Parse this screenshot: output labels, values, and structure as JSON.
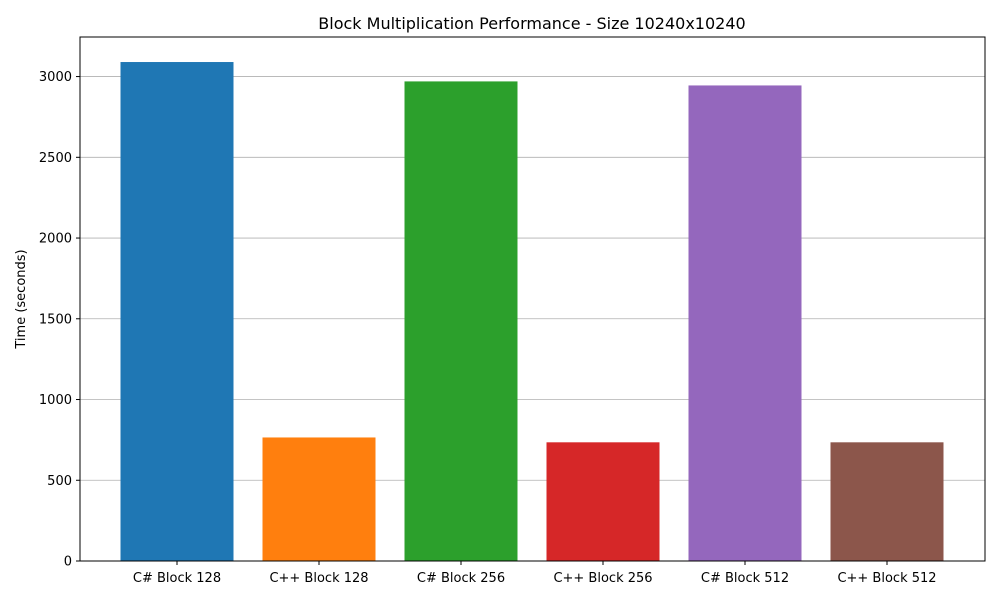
{
  "chart_data": {
    "type": "bar",
    "title": "Block Multiplication Performance - Size 10240x10240",
    "xlabel": "",
    "ylabel": "Time (seconds)",
    "categories": [
      "C# Block 128",
      "C++ Block 128",
      "C# Block 256",
      "C++ Block 256",
      "C# Block 512",
      "C++ Block 512"
    ],
    "values": [
      3090,
      765,
      2970,
      735,
      2945,
      735
    ],
    "colors": [
      "#1f77b4",
      "#ff7f0e",
      "#2ca02c",
      "#d62728",
      "#9467bd",
      "#8c564b"
    ],
    "ylim": [
      0,
      3245
    ],
    "yticks": [
      0,
      500,
      1000,
      1500,
      2000,
      2500,
      3000
    ],
    "grid": "y"
  }
}
